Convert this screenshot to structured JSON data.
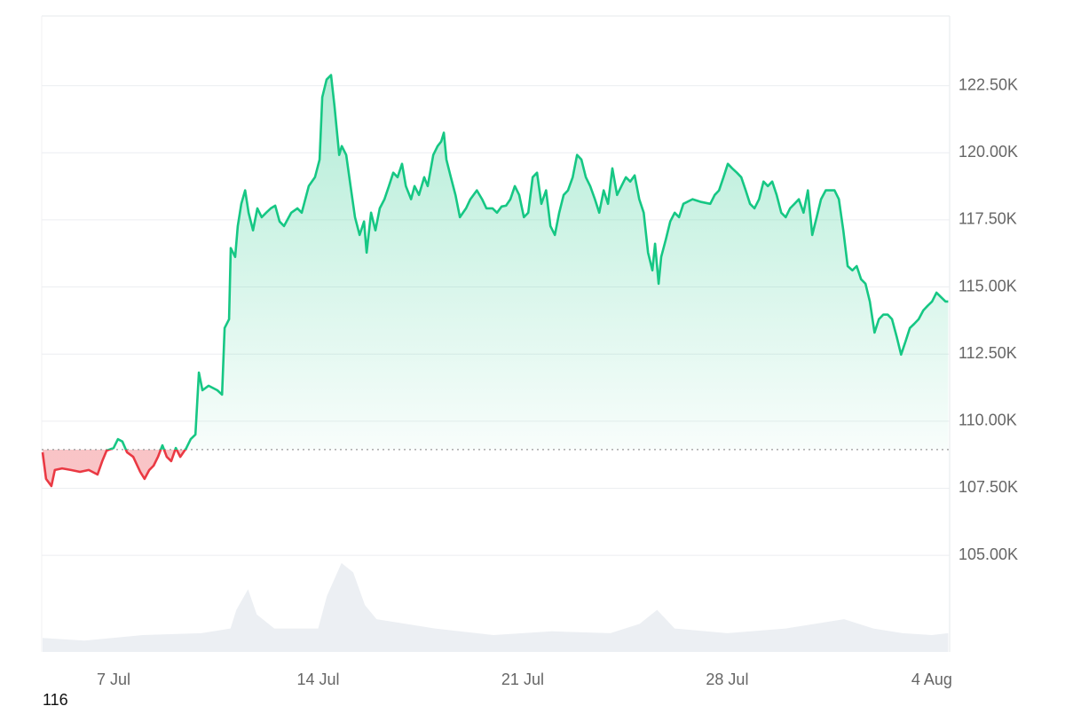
{
  "chart_data": {
    "type": "line",
    "xlim": [
      4.54,
      35.61
    ],
    "ylim": [
      101400,
      125100
    ],
    "y2lim": [
      0,
      680
    ],
    "baseline": 108940,
    "grid": true,
    "xticks": [
      {
        "value": 7,
        "label": "7 Jul"
      },
      {
        "value": 14,
        "label": "14 Jul"
      },
      {
        "value": 21,
        "label": "21 Jul"
      },
      {
        "value": 28,
        "label": "28 Jul"
      },
      {
        "value": 35,
        "label": "4 Aug"
      }
    ],
    "yticks": [
      {
        "value": 105000,
        "label": "105.00K"
      },
      {
        "value": 107500,
        "label": "107.50K"
      },
      {
        "value": 110000,
        "label": "110.00K"
      },
      {
        "value": 112500,
        "label": "112.50K"
      },
      {
        "value": 115000,
        "label": "115.00K"
      },
      {
        "value": 117500,
        "label": "117.50K"
      },
      {
        "value": 120000,
        "label": "120.00K"
      },
      {
        "value": 122500,
        "label": "122.50K"
      }
    ],
    "annotation": "116",
    "series": [
      {
        "color": "#16c784",
        "negative_color": "#ea3943",
        "x": [
          4.57,
          4.69,
          4.87,
          4.99,
          5.24,
          5.54,
          5.85,
          6.15,
          6.45,
          6.61,
          6.76,
          7.0,
          7.15,
          7.3,
          7.46,
          7.67,
          7.91,
          8.06,
          8.22,
          8.37,
          8.52,
          8.67,
          8.82,
          8.97,
          9.13,
          9.28,
          9.49,
          9.64,
          9.8,
          9.92,
          10.04,
          10.25,
          10.55,
          10.71,
          10.8,
          10.95,
          11.01,
          11.16,
          11.25,
          11.37,
          11.5,
          11.62,
          11.77,
          11.92,
          12.07,
          12.22,
          12.38,
          12.53,
          12.68,
          12.83,
          13.08,
          13.29,
          13.44,
          13.68,
          13.89,
          14.05,
          14.14,
          14.29,
          14.44,
          14.56,
          14.72,
          14.81,
          14.96,
          15.11,
          15.26,
          15.42,
          15.57,
          15.66,
          15.81,
          15.96,
          16.11,
          16.27,
          16.42,
          16.57,
          16.72,
          16.87,
          17.0,
          17.18,
          17.3,
          17.45,
          17.63,
          17.75,
          17.94,
          18.09,
          18.21,
          18.3,
          18.39,
          18.54,
          18.7,
          18.85,
          19.06,
          19.21,
          19.43,
          19.61,
          19.76,
          19.97,
          20.12,
          20.28,
          20.43,
          20.58,
          20.73,
          20.88,
          21.04,
          21.19,
          21.34,
          21.49,
          21.64,
          21.8,
          21.95,
          22.1,
          22.25,
          22.4,
          22.55,
          22.71,
          22.86,
          23.01,
          23.16,
          23.31,
          23.47,
          23.62,
          23.77,
          23.92,
          24.07,
          24.23,
          24.38,
          24.53,
          24.68,
          24.83,
          24.99,
          25.14,
          25.29,
          25.44,
          25.53,
          25.65,
          25.74,
          25.9,
          26.05,
          26.2,
          26.35,
          26.5,
          26.81,
          27.11,
          27.42,
          27.57,
          27.72,
          27.87,
          28.02,
          28.17,
          28.33,
          28.48,
          28.63,
          28.78,
          28.93,
          29.09,
          29.24,
          29.39,
          29.54,
          29.69,
          29.85,
          30.0,
          30.15,
          30.3,
          30.45,
          30.61,
          30.76,
          30.91,
          31.06,
          31.21,
          31.37,
          31.52,
          31.67,
          31.82,
          31.97,
          32.12,
          32.28,
          32.43,
          32.58,
          32.73,
          32.88,
          33.04,
          33.19,
          33.34,
          33.49,
          33.64,
          33.8,
          33.95,
          34.1,
          34.25,
          34.4,
          34.55,
          34.71,
          34.86,
          35.01,
          35.16,
          35.31,
          35.47,
          35.56
        ],
        "values": [
          108840,
          107850,
          107580,
          108180,
          108240,
          108180,
          108110,
          108180,
          108010,
          108510,
          108900,
          109000,
          109330,
          109240,
          108840,
          108670,
          108110,
          107850,
          108180,
          108340,
          108670,
          109100,
          108670,
          108510,
          109000,
          108670,
          109000,
          109330,
          109500,
          111810,
          111150,
          111320,
          111150,
          110990,
          113470,
          113800,
          116450,
          116120,
          117270,
          118100,
          118600,
          117770,
          117110,
          117930,
          117600,
          117770,
          117930,
          118030,
          117440,
          117270,
          117770,
          117930,
          117770,
          118760,
          119090,
          119750,
          122070,
          122730,
          122900,
          121740,
          119920,
          120250,
          119920,
          118760,
          117600,
          116940,
          117440,
          116280,
          117770,
          117110,
          117930,
          118270,
          118760,
          119260,
          119090,
          119590,
          118760,
          118270,
          118760,
          118430,
          119090,
          118760,
          119920,
          120250,
          120420,
          120750,
          119750,
          119090,
          118430,
          117600,
          117930,
          118270,
          118600,
          118270,
          117930,
          117930,
          117770,
          118000,
          118030,
          118270,
          118760,
          118430,
          117600,
          117770,
          119090,
          119260,
          118100,
          118600,
          117270,
          116940,
          117770,
          118430,
          118600,
          119090,
          119920,
          119750,
          119090,
          118760,
          118270,
          117770,
          118600,
          118100,
          119420,
          118430,
          118760,
          119090,
          118930,
          119160,
          118270,
          117770,
          116280,
          115620,
          116610,
          115120,
          116120,
          116780,
          117440,
          117770,
          117600,
          118100,
          118270,
          118170,
          118100,
          118430,
          118600,
          119090,
          119590,
          119420,
          119260,
          119090,
          118600,
          118100,
          117930,
          118270,
          118930,
          118760,
          118930,
          118430,
          117770,
          117600,
          117930,
          118100,
          118270,
          117770,
          118600,
          116940,
          117600,
          118270,
          118600,
          118600,
          118600,
          118270,
          117110,
          115780,
          115620,
          115780,
          115290,
          115120,
          114460,
          113300,
          113800,
          113970,
          113970,
          113800,
          113140,
          112480,
          112970,
          113470,
          113630,
          113800,
          114130,
          114300,
          114460,
          114790,
          114630,
          114460,
          114460
        ]
      },
      {
        "axis": "y2",
        "color": "#eceff3",
        "x": [
          4.57,
          6,
          8,
          10,
          11,
          11.2,
          11.6,
          11.9,
          12.5,
          14,
          14.3,
          14.8,
          15.2,
          15.6,
          16,
          17,
          18,
          20,
          22,
          24,
          25,
          25.6,
          26.2,
          28,
          30,
          32,
          33,
          34,
          35,
          35.56
        ],
        "values": [
          15,
          12,
          18,
          20,
          25,
          45,
          67,
          40,
          25,
          25,
          60,
          95,
          85,
          50,
          35,
          30,
          25,
          18,
          22,
          20,
          30,
          45,
          25,
          20,
          25,
          35,
          25,
          20,
          18,
          20
        ]
      }
    ]
  }
}
